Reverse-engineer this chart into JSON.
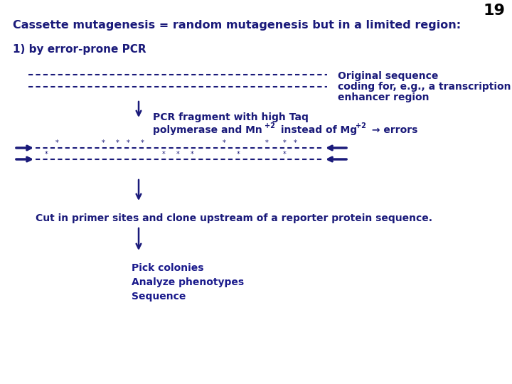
{
  "page_number": "19",
  "title": "Cassette mutagenesis = random mutagenesis but in a limited region:",
  "subtitle": "1) by error-prone PCR",
  "dashed_line1": "- - - - - - - - - - - - - - - - - - - - - - - - - - - - - - - - - - - - - - - - - - - - -",
  "original_seq_label_line1": "Original sequence",
  "original_seq_label_line2": "coding for, e.g., a transcription",
  "original_seq_label_line3": "enhancer region",
  "pcr_label_line1": "PCR fragment with high Taq",
  "pcr_label_line2a": "polymerase and Mn",
  "pcr_label_sup1": "+2",
  "pcr_label_line2b": " instead of Mg",
  "pcr_label_sup2": "+2",
  "pcr_label_line2c": " → errors",
  "mutant_line1": "→-----*---------*--*-**--------------*----------*--*------←",
  "mutant_line2": "→*------------------------*-*-*--------------*--------------*--←",
  "cut_label": "Cut in primer sites and clone upstream of a reporter protein sequence.",
  "pick_line1": "Pick colonies",
  "pick_line2": "Analyze phenotypes",
  "pick_line3": "Sequence",
  "bg_color": "#ffffff",
  "text_color": "#1a1a7a",
  "blue_color": "#1a1a8c",
  "page_num_color": "#000000",
  "title_fontsize": 11.5,
  "body_fontsize": 11,
  "small_fontsize": 10,
  "mono_fontsize": 9
}
